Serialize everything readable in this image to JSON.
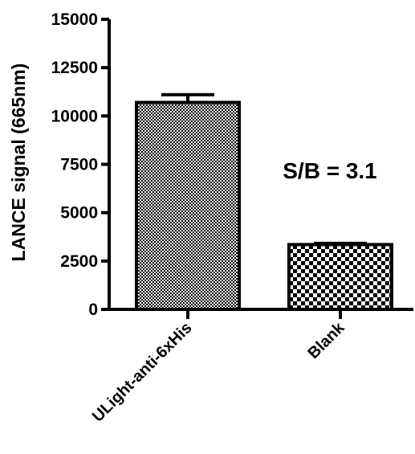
{
  "chart_data": {
    "type": "bar",
    "title": "",
    "xlabel": "",
    "ylabel": "LANCE signal (665nm)",
    "categories": [
      "ULight-anti-6xHis",
      "Blank"
    ],
    "values": [
      10700,
      3350
    ],
    "errors": [
      400,
      60
    ],
    "ylim": [
      0,
      15000
    ],
    "yticks": [
      0,
      2500,
      5000,
      7500,
      10000,
      12500,
      15000
    ],
    "ytick_labels": [
      "0",
      "2500",
      "5000",
      "7500",
      "10000",
      "12500",
      "15000"
    ],
    "annotations": [
      "S/B = 3.1"
    ],
    "grid": false,
    "legend": "none",
    "colors": {
      "fill": "#000000",
      "background": "#ffffff"
    },
    "patterns": [
      "fine-checker",
      "coarse-checker"
    ]
  }
}
